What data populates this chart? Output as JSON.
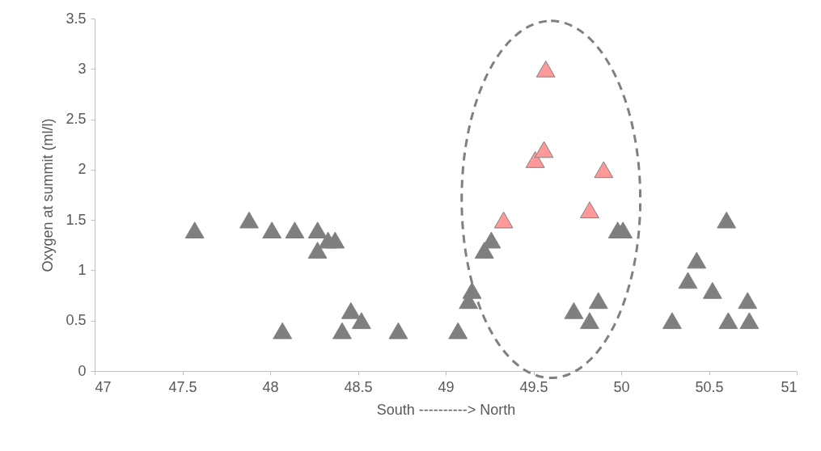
{
  "chart_data": {
    "type": "scatter",
    "xlabel": "South ----------> North",
    "ylabel": "Oxygen at summit (ml/l)",
    "xlim": [
      47,
      51
    ],
    "xticks": [
      47,
      47.5,
      48,
      48.5,
      49,
      49.5,
      50,
      50.5,
      51
    ],
    "ylim": [
      0,
      3.5
    ],
    "yticks": [
      0,
      0.5,
      1,
      1.5,
      2,
      2.5,
      3,
      3.5
    ],
    "marker": "triangle",
    "grid": false,
    "series": [
      {
        "color": "#7f7f7f",
        "x": [
          47.57,
          47.88,
          48.01,
          48.14,
          48.27,
          48.27,
          48.33,
          48.37,
          48.07,
          48.41,
          48.46,
          48.52,
          48.73,
          49.07,
          49.13,
          49.15,
          49.22,
          49.26,
          49.73,
          49.82,
          49.87,
          49.98,
          50.01,
          50.29,
          50.38,
          50.43,
          50.52,
          50.6,
          50.61,
          50.72,
          50.73
        ],
        "values": [
          1.4,
          1.5,
          1.4,
          1.4,
          1.4,
          1.2,
          1.3,
          1.3,
          0.4,
          0.4,
          0.6,
          0.5,
          0.4,
          0.4,
          0.7,
          0.8,
          1.2,
          1.3,
          0.6,
          0.5,
          0.7,
          1.4,
          1.4,
          0.5,
          0.9,
          1.1,
          0.8,
          1.5,
          0.5,
          0.7,
          0.5
        ]
      },
      {
        "color": "#ff9999",
        "x": [
          49.33,
          49.51,
          49.56,
          49.57,
          49.82,
          49.9
        ],
        "values": [
          1.5,
          2.1,
          2.2,
          3.0,
          1.6,
          2.0
        ]
      }
    ]
  }
}
